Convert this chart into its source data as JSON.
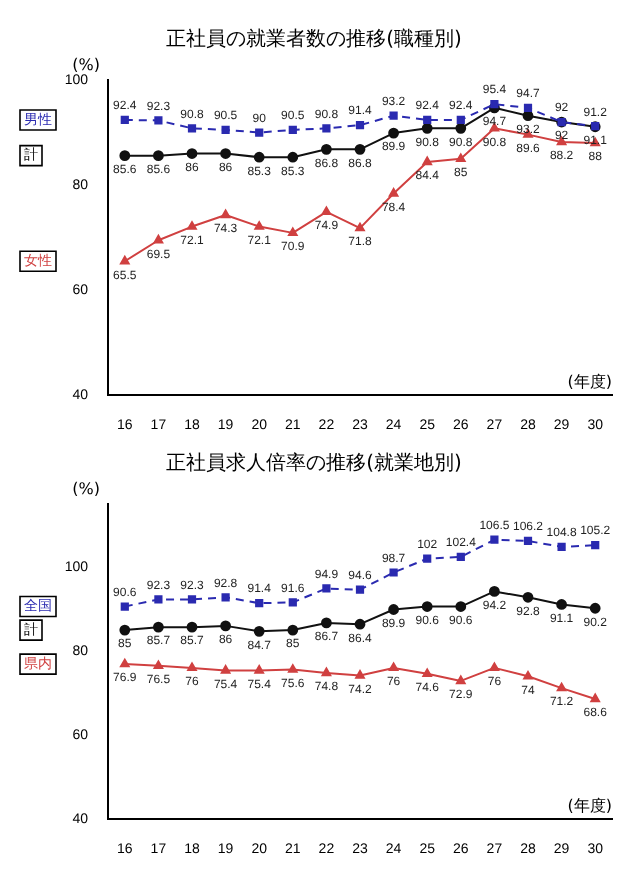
{
  "chart_data": [
    {
      "type": "line",
      "title": "正社員の就業者数の推移(職種別)",
      "ylabel": "(%)",
      "xlabel": "(年度)",
      "categories": [
        "16",
        "17",
        "18",
        "19",
        "20",
        "21",
        "22",
        "23",
        "24",
        "25",
        "26",
        "27",
        "28",
        "29",
        "30"
      ],
      "ylim": [
        40,
        100
      ],
      "yticks": [
        40,
        60,
        80,
        100
      ],
      "data_labels": true,
      "legend": false,
      "grid": false,
      "series": [
        {
          "name": "男性",
          "color": "#2a2ab0",
          "marker": "square",
          "line_style": "dashed",
          "values": [
            92.4,
            92.3,
            90.8,
            90.5,
            90.0,
            90.5,
            90.8,
            91.4,
            93.2,
            92.4,
            92.4,
            95.4,
            94.7,
            92.0,
            91.2
          ]
        },
        {
          "name": "計",
          "color": "#111111",
          "marker": "circle",
          "line_style": "solid",
          "values": [
            85.6,
            85.6,
            86.0,
            86.0,
            85.3,
            85.3,
            86.8,
            86.8,
            89.9,
            90.8,
            90.8,
            94.7,
            93.2,
            92.0,
            91.1
          ]
        },
        {
          "name": "女性",
          "color": "#d04040",
          "marker": "triangle",
          "line_style": "solid",
          "values": [
            65.5,
            69.5,
            72.1,
            74.3,
            72.1,
            70.9,
            74.9,
            71.8,
            78.4,
            84.4,
            85.0,
            90.8,
            89.6,
            88.2,
            88.0
          ]
        }
      ]
    },
    {
      "type": "line",
      "title": "正社員求人倍率の推移(就業地別)",
      "ylabel": "(%)",
      "xlabel": "(年度)",
      "categories": [
        "16",
        "17",
        "18",
        "19",
        "20",
        "21",
        "22",
        "23",
        "24",
        "25",
        "26",
        "27",
        "28",
        "29",
        "30"
      ],
      "ylim": [
        40,
        115
      ],
      "yticks": [
        40,
        60,
        80,
        100
      ],
      "data_labels": true,
      "legend": false,
      "grid": false,
      "series": [
        {
          "name": "全国",
          "color": "#2a2ab0",
          "marker": "square",
          "line_style": "dashed",
          "values": [
            90.6,
            92.3,
            92.3,
            92.8,
            91.4,
            91.6,
            94.9,
            94.6,
            98.7,
            102.0,
            102.4,
            106.5,
            106.2,
            104.8,
            105.2
          ]
        },
        {
          "name": "計",
          "color": "#111111",
          "marker": "circle",
          "line_style": "solid",
          "values": [
            85.0,
            85.7,
            85.7,
            86.0,
            84.7,
            85.0,
            86.7,
            86.4,
            89.9,
            90.6,
            90.6,
            94.2,
            92.8,
            91.1,
            90.2
          ]
        },
        {
          "name": "県内",
          "color": "#d04040",
          "marker": "triangle",
          "line_style": "solid",
          "values": [
            76.9,
            76.5,
            76.0,
            75.4,
            75.4,
            75.6,
            74.8,
            74.2,
            76.0,
            74.6,
            72.9,
            76.0,
            74.0,
            71.2,
            68.6
          ]
        }
      ]
    }
  ]
}
